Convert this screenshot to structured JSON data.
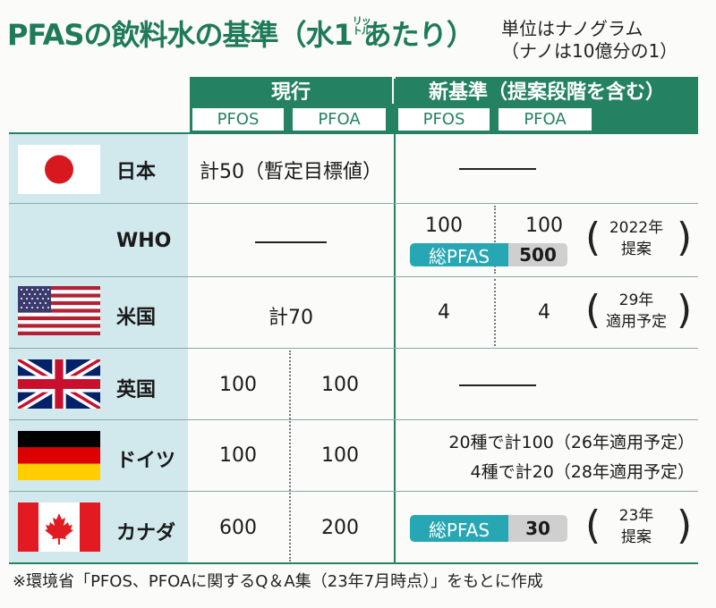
{
  "title": "PFASの飲料水の基準（水1リットルあたり）",
  "title_parts": {
    "main": "PFASの飲料水の基準（水1",
    "ruby_1": "リッ",
    "ruby_2": "トル",
    "tail": "あたり）"
  },
  "unit_note": {
    "line1": "単位はナノグラム",
    "line2": "（ナノは10億分の1）"
  },
  "headers": {
    "current": "現行",
    "new": "新基準（提案段階を含む）",
    "sub": [
      "PFOS",
      "PFOA",
      "PFOS",
      "PFOA"
    ]
  },
  "rows": {
    "japan": {
      "name": "日本",
      "current": "計50（暫定目標値）"
    },
    "who": {
      "name": "WHO",
      "new_pfos": "100",
      "new_pfoa": "100",
      "pill_label": "総PFAS",
      "pill_value": "500",
      "note1": "2022年",
      "note2": "提案"
    },
    "usa": {
      "name": "米国",
      "current": "計70",
      "new_pfos": "4",
      "new_pfoa": "4",
      "note1": "29年",
      "note2": "適用予定"
    },
    "uk": {
      "name": "英国",
      "pfos": "100",
      "pfoa": "100"
    },
    "germany": {
      "name": "ドイツ",
      "pfos": "100",
      "pfoa": "100",
      "new1": "20種で計100（26年適用予定）",
      "new2": "4種で計20（28年適用予定）"
    },
    "canada": {
      "name": "カナダ",
      "pfos": "600",
      "pfoa": "200",
      "pill_label": "総PFAS",
      "pill_value": "30",
      "note1": "23年",
      "note2": "提案"
    }
  },
  "footer": "※環境省「PFOS、PFOAに関するQ＆A集（23年7月時点）」をもとに作成",
  "colors": {
    "accent_green": "#248263",
    "title_green": "#1e7a5a",
    "left_column": "#d1e8ec",
    "pill_teal": "#27a7b3",
    "pill_gray": "#cfcfcf"
  },
  "flags": [
    "japan-flag",
    "us-flag",
    "uk-flag",
    "germany-flag",
    "canada-flag"
  ]
}
